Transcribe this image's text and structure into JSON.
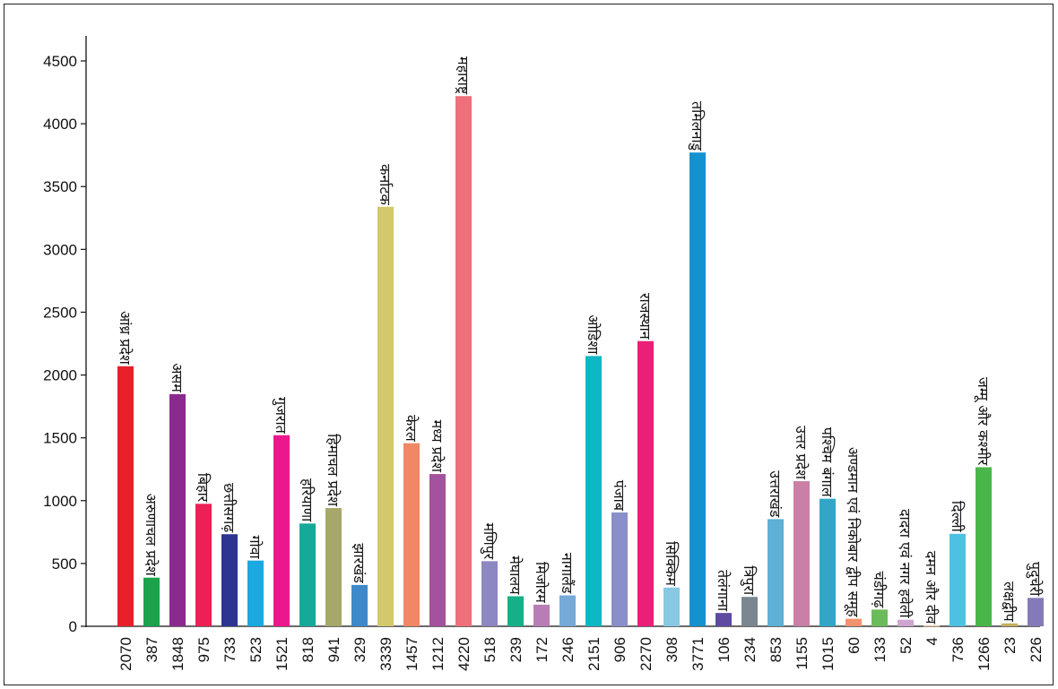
{
  "chart_data": {
    "type": "bar",
    "title": "",
    "xlabel": "",
    "ylabel": "",
    "ylim": [
      0,
      4500
    ],
    "yticks": [
      0,
      500,
      1000,
      1500,
      2000,
      2500,
      3000,
      3500,
      4000,
      4500
    ],
    "grid": false,
    "categories": [
      "आंध्र प्रदेश",
      "अरुणाचल प्रदेश",
      "असम",
      "बिहार",
      "छत्तीसगढ़",
      "गोवा",
      "गुजरात",
      "हरियाणा",
      "हिमाचल प्रदेश",
      "झारखंड",
      "कर्नाटक",
      "केरल",
      "मध्य प्रदेश",
      "महाराष्ट्र",
      "मणिपुर",
      "मेघालय",
      "मिजोरम",
      "नागालैंड",
      "ओडिशा",
      "पंजाब",
      "राजस्थान",
      "सिक्किम",
      "तमिलनाडु",
      "तेलंगाना",
      "त्रिपुरा",
      "उत्तराखंड",
      "उत्तर प्रदेश",
      "पश्चिम बंगाल",
      "अण्डमान एवं निकोबार द्वीप समूह",
      "चंडीगढ़",
      "दादरा एवं नगर हवेली",
      "दमन और दीव",
      "दिल्ली",
      "जम्मू और कश्मीर",
      "लक्षद्वीप",
      "पुदुचेरी"
    ],
    "values": [
      2070,
      387,
      1848,
      975,
      733,
      523,
      1521,
      818,
      941,
      329,
      3339,
      1457,
      1212,
      4220,
      518,
      239,
      172,
      246,
      2151,
      906,
      2270,
      308,
      3771,
      106,
      234,
      853,
      1155,
      1015,
      60,
      133,
      52,
      4,
      736,
      1266,
      23,
      226
    ],
    "colors": [
      "#e8202a",
      "#1ba24a",
      "#8b2a8e",
      "#ec2055",
      "#2d3590",
      "#1aa9e0",
      "#ec178c",
      "#16a99a",
      "#a5a869",
      "#3e89c9",
      "#d4c86d",
      "#f28765",
      "#a3529d",
      "#ef6f7b",
      "#8d87c2",
      "#15b087",
      "#b87db4",
      "#77a9d8",
      "#0eb7c4",
      "#8b8fc9",
      "#ea1f79",
      "#88c8e2",
      "#1492d0",
      "#5e4aa0",
      "#7a8790",
      "#5eb0d6",
      "#c97fa6",
      "#33a6c7",
      "#f3926e",
      "#6cbb5a",
      "#cfa5cf",
      "#f3c98c",
      "#4ec1e3",
      "#49b649",
      "#c5b05e",
      "#857ab9"
    ]
  }
}
